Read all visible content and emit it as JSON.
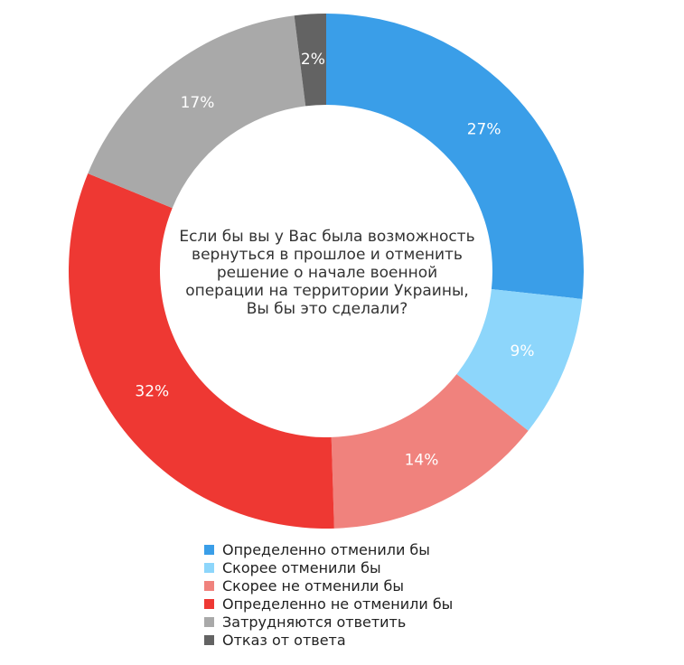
{
  "chart_data": {
    "type": "pie",
    "donut": true,
    "title_lines": [
      "Если бы вы у Вас была возможность",
      "вернуться в прошлое и отменить",
      "решение о начале военной",
      "операции на территории Украины,",
      "Вы бы это сделали?"
    ],
    "slices": [
      {
        "label": "Определенно отменили бы",
        "value": 27,
        "value_label": "27%",
        "color": "#3a9ee8"
      },
      {
        "label": "Скорее отменили бы",
        "value": 9,
        "value_label": "9%",
        "color": "#8dd6fb"
      },
      {
        "label": "Скорее не отменили бы",
        "value": 14,
        "value_label": "14%",
        "color": "#f0827d"
      },
      {
        "label": "Определенно не отменили бы",
        "value": 32,
        "value_label": "32%",
        "color": "#ee3833"
      },
      {
        "label": "Затрудняются ответить",
        "value": 17,
        "value_label": "17%",
        "color": "#a9a9a9"
      },
      {
        "label": "Отказ от ответа",
        "value": 2,
        "value_label": "2%",
        "color": "#636363"
      }
    ],
    "legend_position": "bottom-center"
  }
}
